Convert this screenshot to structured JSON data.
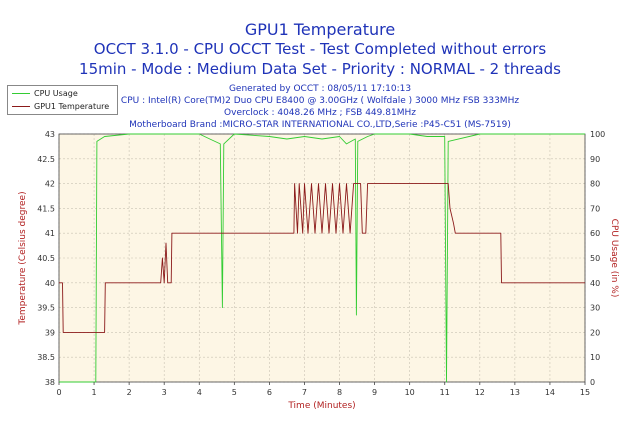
{
  "chart_data": {
    "type": "line",
    "title": "GPU1 Temperature",
    "subtitle_lines": [
      "OCCT 3.1.0 - CPU OCCT Test - Test Completed without errors",
      "15min - Mode : Medium Data Set - Priority : NORMAL - 2 threads"
    ],
    "info_lines": [
      "Generated by OCCT : 08/05/11 17:10:13",
      "CPU : Intel(R) Core(TM)2 Duo CPU E8400 @ 3.00GHz ( Wolfdale ) 3000 MHz FSB 333MHz",
      "Overclock : 4048.26 MHz ; FSB 449.81MHz",
      "Motherboard Brand :MICRO-STAR INTERNATIONAL CO.,LTD,Serie :P45-C51 (MS-7519)"
    ],
    "xlabel": "Time (Minutes)",
    "ylabel_left": "Temperature (Celsius degree)",
    "ylabel_right": "CPU Usage (in %)",
    "xlim": [
      0,
      15
    ],
    "ylim_left": [
      38,
      43
    ],
    "ylim_right": [
      0,
      100
    ],
    "x_ticks": [
      "0",
      "1",
      "2",
      "3",
      "4",
      "5",
      "6",
      "7",
      "8",
      "9",
      "10",
      "11",
      "12",
      "13",
      "14",
      "15"
    ],
    "y_ticks_left": [
      "38",
      "38.5",
      "39",
      "39.5",
      "40",
      "40.5",
      "41",
      "41.5",
      "42",
      "42.5",
      "43"
    ],
    "y_ticks_right": [
      "0",
      "10",
      "20",
      "30",
      "40",
      "50",
      "60",
      "70",
      "80",
      "90",
      "100"
    ],
    "grid": true,
    "legend_position": "top-left",
    "plot_background": "#fdf6e5",
    "series": [
      {
        "name": "CPU Usage",
        "axis": "right",
        "color": "#33cc33",
        "points": [
          [
            0,
            0
          ],
          [
            1.05,
            0
          ],
          [
            1.08,
            97
          ],
          [
            1.3,
            99
          ],
          [
            2,
            100
          ],
          [
            3,
            100
          ],
          [
            4,
            100
          ],
          [
            4.3,
            98
          ],
          [
            4.6,
            96
          ],
          [
            4.66,
            30
          ],
          [
            4.7,
            96
          ],
          [
            5,
            100
          ],
          [
            6,
            99
          ],
          [
            6.5,
            98
          ],
          [
            7,
            99
          ],
          [
            7.5,
            98
          ],
          [
            8,
            99
          ],
          [
            8.2,
            96
          ],
          [
            8.45,
            98
          ],
          [
            8.48,
            27
          ],
          [
            8.52,
            97
          ],
          [
            8.8,
            99
          ],
          [
            9,
            100
          ],
          [
            10,
            100
          ],
          [
            10.5,
            99
          ],
          [
            11,
            99
          ],
          [
            11.05,
            0
          ],
          [
            11.1,
            97
          ],
          [
            12,
            100
          ],
          [
            13,
            100
          ],
          [
            14,
            100
          ],
          [
            15,
            100
          ]
        ]
      },
      {
        "name": "GPU1 Temperature",
        "axis": "left",
        "color": "#8b1a1a",
        "points": [
          [
            0,
            40
          ],
          [
            0.1,
            40
          ],
          [
            0.12,
            39
          ],
          [
            1,
            39
          ],
          [
            1.3,
            39
          ],
          [
            1.32,
            40
          ],
          [
            2.9,
            40
          ],
          [
            2.95,
            40.5
          ],
          [
            3,
            40
          ],
          [
            3.05,
            40.8
          ],
          [
            3.1,
            40
          ],
          [
            3.2,
            40
          ],
          [
            3.22,
            41
          ],
          [
            5,
            41
          ],
          [
            6.5,
            41
          ],
          [
            6.7,
            41
          ],
          [
            6.72,
            42
          ],
          [
            6.8,
            41
          ],
          [
            6.85,
            42
          ],
          [
            6.95,
            41
          ],
          [
            7,
            42
          ],
          [
            7.1,
            41
          ],
          [
            7.2,
            42
          ],
          [
            7.3,
            41
          ],
          [
            7.4,
            42
          ],
          [
            7.5,
            41
          ],
          [
            7.6,
            42
          ],
          [
            7.7,
            41
          ],
          [
            7.8,
            42
          ],
          [
            7.9,
            41
          ],
          [
            8,
            42
          ],
          [
            8.1,
            41
          ],
          [
            8.2,
            42
          ],
          [
            8.3,
            41
          ],
          [
            8.4,
            42
          ],
          [
            8.6,
            42
          ],
          [
            8.65,
            41
          ],
          [
            8.75,
            41
          ],
          [
            8.8,
            42
          ],
          [
            11,
            42
          ],
          [
            11.1,
            42
          ],
          [
            11.15,
            41.5
          ],
          [
            11.25,
            41.2
          ],
          [
            11.3,
            41
          ],
          [
            12.6,
            41
          ],
          [
            12.62,
            40
          ],
          [
            15,
            40
          ]
        ]
      }
    ]
  }
}
